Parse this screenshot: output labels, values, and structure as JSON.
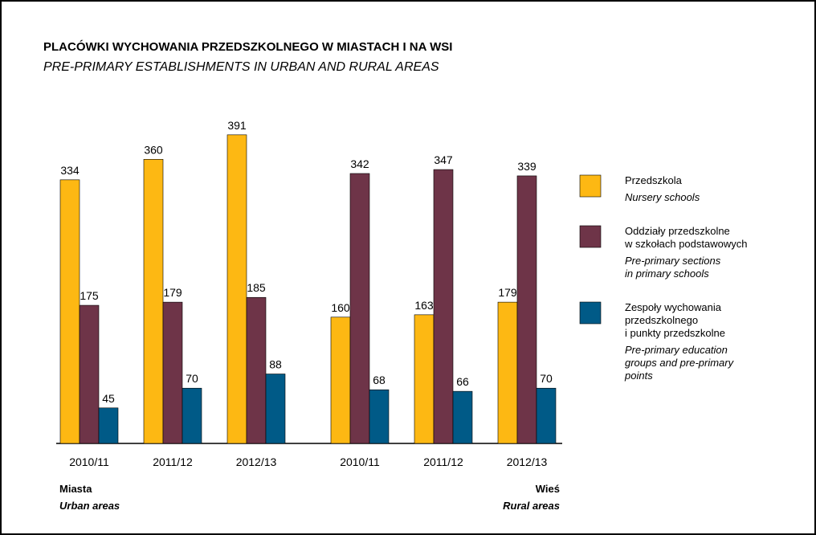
{
  "chart_data": {
    "type": "bar",
    "title": "PLACÓWKI WYCHOWANIA PRZEDSZKOLNEGO W MIASTACH I NA WSI",
    "subtitle": "PRE-PRIMARY ESTABLISHMENTS IN URBAN AND RURAL AREAS",
    "categories": [
      "2010/11",
      "2011/12",
      "2012/13",
      "2010/11",
      "2011/12",
      "2012/13"
    ],
    "groups": [
      {
        "name": "Miasta",
        "name_en": "Urban areas"
      },
      {
        "name": "Wieś",
        "name_en": "Rural areas"
      }
    ],
    "ylim": [
      0,
      400
    ],
    "series": [
      {
        "name": [
          "Przedszkola"
        ],
        "name_en": [
          "Nursery schools"
        ],
        "color": "#fdb813",
        "values": [
          334,
          360,
          391,
          160,
          163,
          179
        ]
      },
      {
        "name": [
          "Oddziały przedszkolne",
          "w szkołach podstawowych"
        ],
        "name_en": [
          "Pre-primary sections",
          "in primary schools"
        ],
        "color": "#6e3448",
        "values": [
          175,
          179,
          185,
          342,
          347,
          339
        ]
      },
      {
        "name": [
          "Zespoły wychowania",
          "przedszkolnego",
          "i punkty przedszkolne"
        ],
        "name_en": [
          "Pre-primary education",
          "groups and pre-primary",
          "points"
        ],
        "color": "#005a87",
        "values": [
          45,
          70,
          88,
          68,
          66,
          70
        ]
      }
    ]
  }
}
